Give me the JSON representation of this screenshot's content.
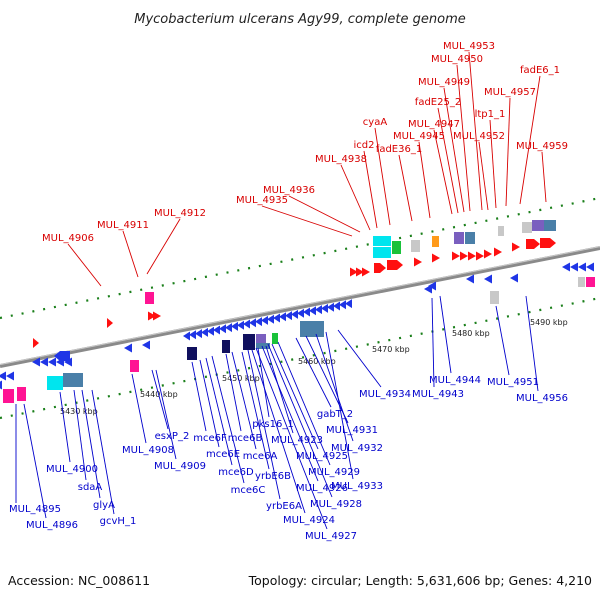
{
  "title": "Mycobacterium ulcerans Agy99, complete genome",
  "footer": {
    "accession": "Accession: NC_008611",
    "summary": "Topology: circular; Length: 5,631,606 bp; Genes: 4,210"
  },
  "colors": {
    "forward_label": "#d80000",
    "reverse_label": "#0000cc",
    "forward_gene": "#ff1010",
    "reverse_gene": "#1f35e6",
    "backbone": "#8a8a8a",
    "tick": "#1a7f1a",
    "cyan_feature": "#00e5ee",
    "steel_feature": "#4a7fa8",
    "navy_feature": "#10105e",
    "purple_feature": "#7a5fbf",
    "pink_feature": "#ff1493",
    "green_feature": "#19c23a",
    "orange_feature": "#ff9a1a",
    "gray_feature": "#c8c8c8"
  },
  "scale": {
    "labels": [
      "5430 kbp",
      "5440 kbp",
      "5450 kbp",
      "5460 kbp",
      "5470 kbp",
      "5480 kbp",
      "5490 kbp"
    ]
  },
  "forward_genes": {
    "labels": [
      "MUL_4906",
      "MUL_4911",
      "MUL_4912",
      "MUL_4935",
      "MUL_4936",
      "MUL_4938",
      "icd2",
      "cyaA",
      "fadE36_1",
      "MUL_4945",
      "MUL_4947",
      "fadE25_2",
      "MUL_4949",
      "MUL_4950",
      "MUL_4953",
      "MUL_4952",
      "ltp1_1",
      "MUL_4957",
      "fadE6_1",
      "MUL_4959"
    ]
  },
  "reverse_genes": {
    "labels": [
      "MUL_4895",
      "MUL_4896",
      "MUL_4900",
      "sdaA",
      "glyA",
      "gcvH_1",
      "MUL_4908",
      "esxP_2",
      "MUL_4909",
      "mce6F",
      "mce6E",
      "mce6D",
      "mce6C",
      "mce6B",
      "mce6A",
      "pks16_1",
      "yrbE6B",
      "yrbE6A",
      "MUL_4923",
      "MUL_4924",
      "MUL_4925",
      "MUL_4926",
      "MUL_4927",
      "MUL_4928",
      "MUL_4929",
      "gabT_2",
      "MUL_4931",
      "MUL_4932",
      "MUL_4933",
      "MUL_4934",
      "MUL_4943",
      "MUL_4944",
      "MUL_4951",
      "MUL_4956"
    ]
  }
}
